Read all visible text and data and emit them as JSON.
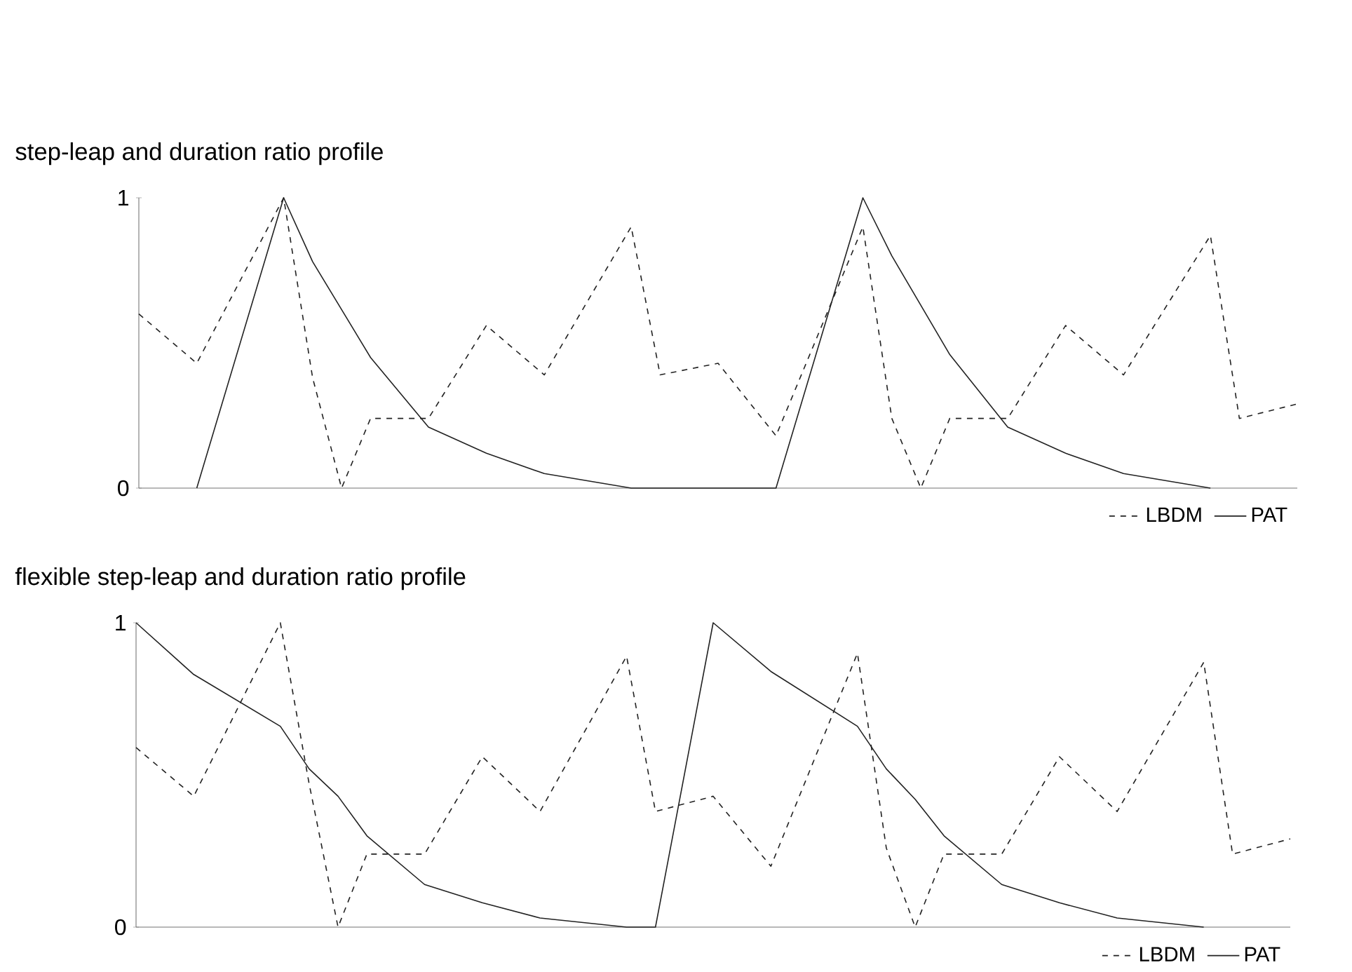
{
  "chart_data": [
    {
      "type": "line",
      "title": "step-leap and duration ratio profile",
      "categories": [
        null,
        null,
        null,
        null,
        null,
        null,
        null,
        null,
        null,
        null,
        null,
        null,
        null,
        null,
        null,
        null,
        null,
        null,
        null,
        null,
        null,
        null,
        null,
        null,
        null,
        null,
        null,
        null,
        null,
        null,
        null,
        null,
        null,
        null,
        null,
        null,
        null,
        null,
        null,
        null,
        null
      ],
      "ylim": [
        0,
        1
      ],
      "yticks": [
        0,
        1
      ],
      "tick_labels": "y",
      "legend": "bottom right",
      "series": [
        {
          "name": "LBDM",
          "color": "#222222",
          "line_style": "dashed",
          "values": [
            0.6,
            null,
            0.43,
            null,
            null,
            1.0,
            0.38,
            0,
            0.24,
            null,
            0.24,
            null,
            0.56,
            null,
            0.39,
            null,
            null,
            0.9,
            0.39,
            null,
            0.43,
            null,
            0.18,
            null,
            null,
            0.9,
            0.24,
            0,
            0.24,
            null,
            0.24,
            null,
            0.56,
            null,
            0.39,
            null,
            null,
            0.87,
            0.24,
            null,
            0.29
          ]
        },
        {
          "name": "PAT",
          "color": "#222222",
          "line_style": "solid",
          "values": [
            null,
            null,
            0,
            null,
            null,
            1.0,
            0.78,
            null,
            0.45,
            null,
            0.21,
            null,
            0.12,
            null,
            0.05,
            null,
            null,
            0,
            null,
            null,
            null,
            null,
            0,
            null,
            null,
            1.0,
            0.8,
            null,
            0.46,
            null,
            0.21,
            null,
            0.12,
            null,
            0.05,
            null,
            null,
            0,
            null,
            null,
            null
          ]
        }
      ]
    },
    {
      "type": "line",
      "title": "flexible step-leap and duration ratio profile",
      "categories": [
        null,
        null,
        null,
        null,
        null,
        null,
        null,
        null,
        null,
        null,
        null,
        null,
        null,
        null,
        null,
        null,
        null,
        null,
        null,
        null,
        null,
        null,
        null,
        null,
        null,
        null,
        null,
        null,
        null,
        null,
        null,
        null,
        null,
        null,
        null,
        null,
        null,
        null,
        null,
        null,
        null
      ],
      "ylim": [
        0,
        1
      ],
      "yticks": [
        0,
        1
      ],
      "tick_labels": "y",
      "legend": "bottom right",
      "series": [
        {
          "name": "LBDM",
          "color": "#222222",
          "line_style": "dashed",
          "values": [
            0.59,
            null,
            0.43,
            null,
            null,
            1.0,
            0.47,
            0,
            0.24,
            null,
            0.24,
            null,
            0.56,
            null,
            0.38,
            null,
            null,
            0.89,
            0.38,
            null,
            0.43,
            null,
            0.2,
            null,
            null,
            0.9,
            0.26,
            0,
            0.24,
            null,
            0.24,
            null,
            0.56,
            null,
            0.38,
            null,
            null,
            0.87,
            0.24,
            null,
            0.29
          ]
        },
        {
          "name": "PAT",
          "color": "#222222",
          "line_style": "solid",
          "values": [
            1.0,
            null,
            0.83,
            null,
            null,
            0.66,
            0.52,
            0.43,
            0.3,
            null,
            0.14,
            null,
            0.08,
            null,
            0.03,
            null,
            null,
            0,
            0,
            null,
            1.0,
            null,
            0.84,
            null,
            null,
            0.66,
            0.52,
            0.42,
            0.3,
            null,
            0.14,
            null,
            0.08,
            null,
            0.03,
            null,
            null,
            0,
            null,
            null,
            null
          ]
        }
      ]
    }
  ]
}
